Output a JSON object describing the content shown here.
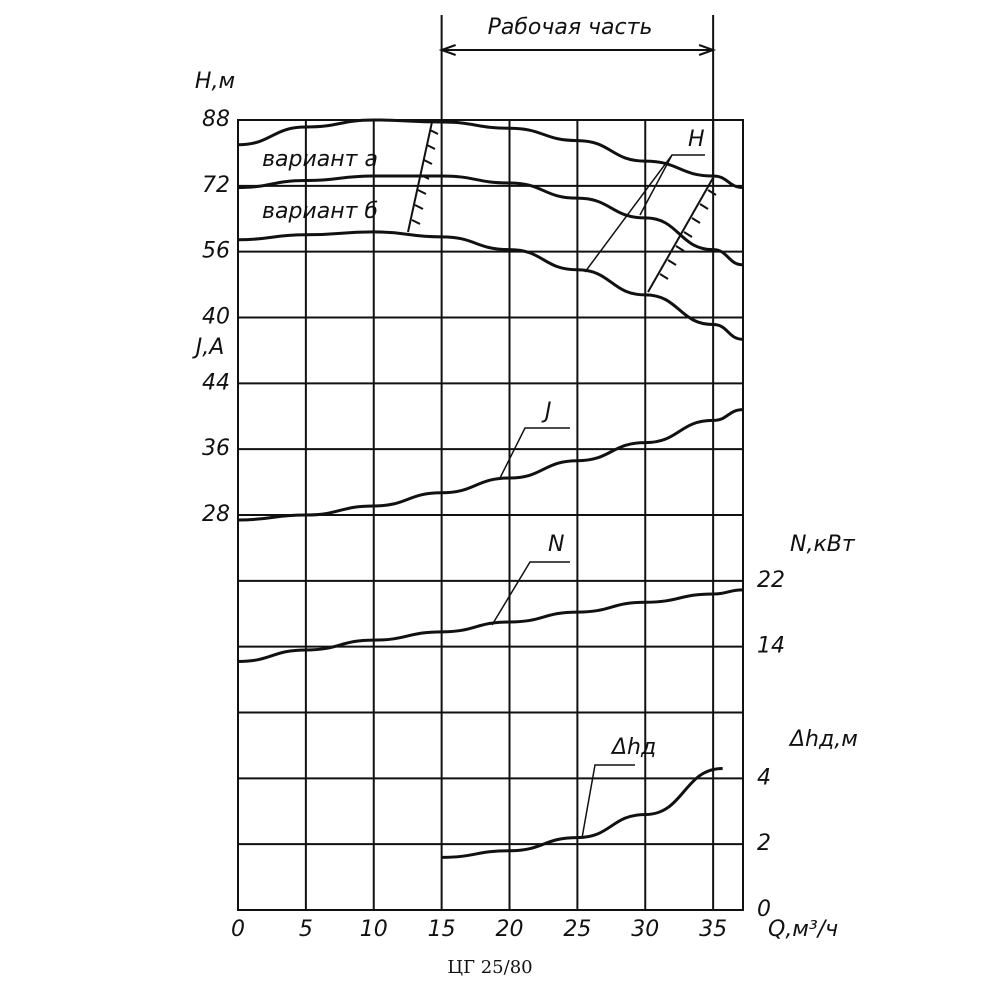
{
  "chart_data": {
    "type": "line",
    "title": "ЦГ 25/80",
    "x_label": "Q,м³/ч",
    "xlim": [
      0,
      37.2
    ],
    "xticks": [
      0,
      5,
      10,
      15,
      20,
      25,
      30,
      35
    ],
    "work_range": {
      "label": "Рабочая часть",
      "x": [
        15,
        35
      ]
    },
    "color": "#111111",
    "panels": [
      {
        "y_label": "H,м",
        "side": "left",
        "ylim": [
          24,
          88
        ],
        "yticks": [
          88,
          72,
          56,
          40
        ],
        "curve_label": "H",
        "series": [
          {
            "name": "вариант а",
            "x": [
              0,
              5,
              10,
              15,
              20,
              25,
              30,
              35,
              37.2
            ],
            "values": [
              82,
              86.3,
              88,
              87.5,
              86,
              83,
              78,
              74.4,
              71.6
            ]
          },
          {
            "name": "вариант б",
            "x": [
              0,
              5,
              10,
              15,
              20,
              25,
              30,
              35,
              37.2
            ],
            "values": [
              71.6,
              73.3,
              74.4,
              74.4,
              72.7,
              69,
              64.2,
              56.5,
              52.8
            ]
          },
          {
            "x": [
              0,
              5,
              10,
              15,
              20,
              25,
              30,
              35,
              37.2
            ],
            "values": [
              58.9,
              60.1,
              60.8,
              59.6,
              56.5,
              51.6,
              45.5,
              38.3,
              34.7
            ]
          }
        ]
      },
      {
        "y_label": "J,A",
        "side": "left",
        "ylim": [
          20,
          44
        ],
        "yticks": [
          44,
          36,
          28
        ],
        "curve_label": "J",
        "series": [
          {
            "x": [
              0,
              5,
              10,
              15,
              20,
              25,
              30,
              35,
              37.2
            ],
            "values": [
              27.4,
              28,
              29.1,
              30.7,
              32.5,
              34.6,
              36.8,
              39.5,
              40.8
            ]
          }
        ]
      },
      {
        "y_label": "N,кВт",
        "side": "right",
        "ylim": [
          6,
          22
        ],
        "yticks": [
          22,
          14
        ],
        "curve_label": "N",
        "series": [
          {
            "x": [
              0,
              5,
              10,
              15,
              20,
              25,
              30,
              35,
              37.2
            ],
            "values": [
              12.2,
              13.6,
              14.8,
              15.8,
              17,
              18.2,
              19.4,
              20.4,
              20.9
            ]
          }
        ]
      },
      {
        "y_label": "Δhд,м",
        "side": "right",
        "ylim": [
          0,
          4
        ],
        "yticks": [
          4,
          2,
          0
        ],
        "curve_label": "Δhд",
        "series": [
          {
            "x": [
              15,
              20,
              25,
              30,
              35.7
            ],
            "values": [
              1.6,
              1.8,
              2.2,
              2.9,
              4.3
            ]
          }
        ]
      }
    ]
  }
}
